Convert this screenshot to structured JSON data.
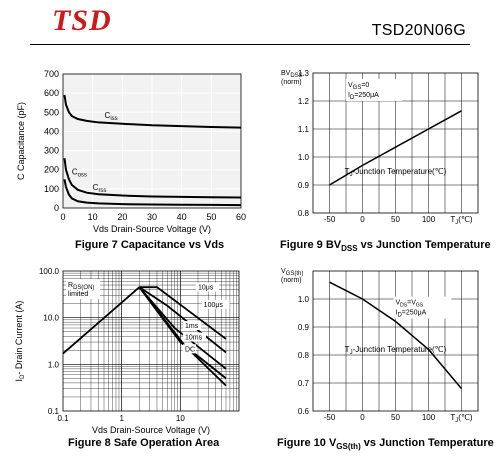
{
  "header": {
    "logo_text": "TSD",
    "part_number": "TSD20N06G",
    "logo_color": "#cc1a1a"
  },
  "chart_data": [
    {
      "id": "fig7",
      "type": "line",
      "caption": "Figure 7 Capacitance vs Vds",
      "xlabel": "Vds Drain-Source Voltage (V)",
      "ylabel": "C Capacitance (pF)",
      "xlim": [
        0,
        60
      ],
      "ylim": [
        0,
        700
      ],
      "xticks": [
        0,
        10,
        20,
        30,
        40,
        50,
        60
      ],
      "yticks": [
        0,
        100,
        200,
        300,
        400,
        500,
        600,
        700
      ],
      "grid": true,
      "series": [
        {
          "name": "Ciss",
          "name_main": "C",
          "name_sub": "iss",
          "label_x": 14,
          "label_y": 470,
          "x": [
            0.5,
            1,
            2,
            3,
            5,
            8,
            12,
            20,
            30,
            40,
            50,
            60
          ],
          "y": [
            590,
            540,
            500,
            480,
            465,
            455,
            447,
            440,
            432,
            428,
            423,
            420
          ]
        },
        {
          "name": "Coss",
          "name_main": "C",
          "name_sub": "oss",
          "label_x": 3,
          "label_y": 175,
          "x": [
            0.5,
            1,
            2,
            3,
            5,
            8,
            12,
            20,
            30,
            40,
            50,
            60
          ],
          "y": [
            260,
            200,
            150,
            120,
            95,
            80,
            72,
            65,
            60,
            58,
            56,
            55
          ]
        },
        {
          "name": "Crss",
          "name_main": "C",
          "name_sub": "rss",
          "label_x": 10,
          "label_y": 95,
          "x": [
            0.5,
            1,
            2,
            3,
            5,
            8,
            12,
            20,
            30,
            40,
            50,
            60
          ],
          "y": [
            150,
            110,
            70,
            50,
            35,
            28,
            24,
            20,
            18,
            17,
            16,
            15
          ]
        }
      ]
    },
    {
      "id": "fig9",
      "type": "line",
      "caption_main": "Figure 9 BV",
      "caption_sub": "DSS",
      "caption_tail": " vs Junction Temperature",
      "xlabel": "T J-Junction Temperature(℃)",
      "xlabel_main": "T",
      "xlabel_sub": "J",
      "xlabel_tail": "-Junction Temperature(℃)",
      "ylabel_main": "BV",
      "ylabel_sub": "DSS",
      "ylabel_unit": "(norm)",
      "xlim": [
        -75,
        175
      ],
      "ylim": [
        0.8,
        1.3
      ],
      "xticks": [
        -50,
        0,
        50,
        100
      ],
      "xtick_unit_main": "T",
      "xtick_unit_sub": "J",
      "xtick_unit_tail": "(℃)",
      "yticks": [
        0.8,
        0.9,
        1.0,
        1.1,
        1.2,
        1.3
      ],
      "grid": true,
      "annotation": [
        "V",
        "GS",
        "=0",
        "I",
        "D",
        "=250μA"
      ],
      "series": [
        {
          "x": [
            -50,
            0,
            50,
            100,
            150
          ],
          "y": [
            0.9,
            0.97,
            1.035,
            1.1,
            1.165
          ]
        }
      ]
    },
    {
      "id": "fig8",
      "type": "line",
      "caption": "Figure 8 Safe Operation Area",
      "xlabel": "Vds Drain-Source Voltage (V)",
      "ylabel_main": "I",
      "ylabel_sub": "D",
      "ylabel_tail": "- Drain Current (A)",
      "xscale": "log",
      "yscale": "log",
      "xlim": [
        0.1,
        100
      ],
      "ylim": [
        0.1,
        100
      ],
      "xticks": [
        0.1,
        1,
        10
      ],
      "yticks": [
        0.1,
        1.0,
        10.0,
        100.0
      ],
      "xtick_labels": [
        "0.1",
        "1",
        "10"
      ],
      "ytick_labels": [
        "0.1",
        "1.0",
        "10.0",
        "100.0"
      ],
      "grid": true,
      "rds_label": [
        "R",
        "DS(ON)",
        "limited"
      ],
      "series": [
        {
          "name": "RDS(ON) limited",
          "x": [
            0.1,
            2
          ],
          "y": [
            1.7,
            45
          ]
        },
        {
          "name": "10μs",
          "label": "10μs",
          "x": [
            2,
            4,
            60
          ],
          "y": [
            45,
            45,
            3.5
          ]
        },
        {
          "name": "100μs",
          "label": "100μs",
          "x": [
            2,
            6,
            60
          ],
          "y": [
            45,
            18,
            1.8
          ]
        },
        {
          "name": "1ms",
          "label": "1ms",
          "x": [
            2,
            8,
            60
          ],
          "y": [
            45,
            6,
            0.8
          ]
        },
        {
          "name": "10ms",
          "label": "10ms",
          "x": [
            2,
            10,
            60
          ],
          "y": [
            45,
            3,
            0.5
          ]
        },
        {
          "name": "DC",
          "label": "DC",
          "x": [
            2,
            12,
            60
          ],
          "y": [
            45,
            2.5,
            0.35
          ]
        }
      ]
    },
    {
      "id": "fig10",
      "type": "line",
      "caption_main": "Figure 10 V",
      "caption_sub": "GS(th)",
      "caption_tail": " vs Junction Temperature",
      "xlabel_main": "T",
      "xlabel_sub": "J",
      "xlabel_tail": "-Junction Temperature(℃)",
      "ylabel_main": "V",
      "ylabel_sub": "GS(th)",
      "ylabel_unit": "(norm)",
      "xlim": [
        -75,
        175
      ],
      "ylim": [
        0.6,
        1.1
      ],
      "xticks": [
        -50,
        0,
        50,
        100
      ],
      "xtick_unit_main": "T",
      "xtick_unit_sub": "J",
      "xtick_unit_tail": "(℃)",
      "yticks": [
        0.6,
        0.7,
        0.8,
        0.9,
        1.0
      ],
      "grid": true,
      "annotation": [
        "V",
        "DS",
        "=V",
        "GS",
        "I",
        "D",
        "=250μA"
      ],
      "series": [
        {
          "x": [
            -50,
            -25,
            0,
            25,
            50,
            75,
            100,
            125,
            150
          ],
          "y": [
            1.06,
            1.03,
            1.0,
            0.96,
            0.92,
            0.87,
            0.82,
            0.75,
            0.68
          ]
        }
      ]
    }
  ]
}
